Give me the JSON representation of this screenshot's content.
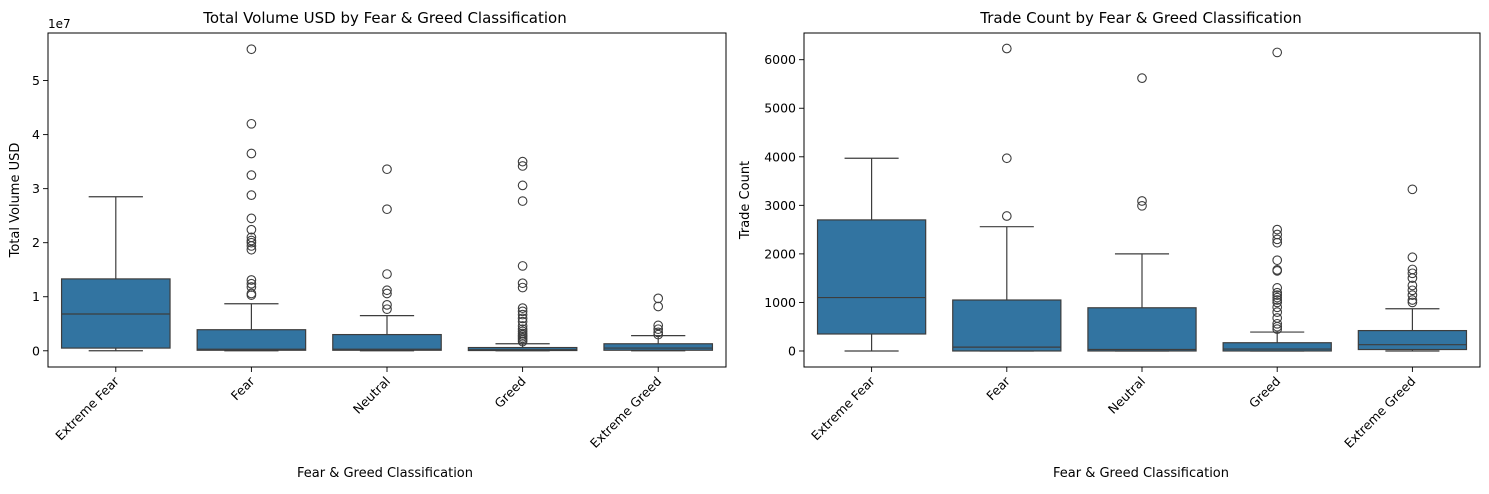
{
  "chart_data": [
    {
      "type": "box",
      "title": "Total Volume USD by Fear & Greed Classification",
      "xlabel": "Fear & Greed Classification",
      "ylabel": "Total Volume USD",
      "offset_label": "1e7",
      "ylim": [
        -3000000,
        58800000
      ],
      "yticks": [
        0,
        10000000,
        20000000,
        30000000,
        40000000,
        50000000
      ],
      "ytick_labels": [
        "0",
        "1",
        "2",
        "3",
        "4",
        "5"
      ],
      "categories": [
        "Extreme Fear",
        "Fear",
        "Neutral",
        "Greed",
        "Extreme Greed"
      ],
      "color": "#3274a1",
      "boxes": [
        {
          "category": "Extreme Fear",
          "whislo": 0,
          "q1": 500000,
          "med": 6800000,
          "q3": 13300000,
          "whishi": 28500000,
          "fliers": []
        },
        {
          "category": "Fear",
          "whislo": 0,
          "q1": 100000,
          "med": 300000,
          "q3": 3900000,
          "whishi": 8700000,
          "fliers": [
            10300000,
            10600000,
            11800000,
            12400000,
            13100000,
            18700000,
            19400000,
            20000000,
            20400000,
            21000000,
            22400000,
            24500000,
            28800000,
            32500000,
            36500000,
            42000000,
            55800000
          ]
        },
        {
          "category": "Neutral",
          "whislo": 0,
          "q1": 100000,
          "med": 300000,
          "q3": 3000000,
          "whishi": 6500000,
          "fliers": [
            7700000,
            8500000,
            10600000,
            11200000,
            14200000,
            26200000,
            33600000
          ]
        },
        {
          "category": "Greed",
          "whislo": 0,
          "q1": 50000,
          "med": 200000,
          "q3": 600000,
          "whishi": 1300000,
          "fliers": [
            1700000,
            2000000,
            2300000,
            2600000,
            2900000,
            3200000,
            3600000,
            4000000,
            4600000,
            5400000,
            6000000,
            6700000,
            7300000,
            7900000,
            11700000,
            12500000,
            15700000,
            27700000,
            30600000,
            34200000,
            35000000
          ]
        },
        {
          "category": "Extreme Greed",
          "whislo": 0,
          "q1": 100000,
          "med": 500000,
          "q3": 1300000,
          "whishi": 2800000,
          "fliers": [
            3000000,
            3400000,
            4000000,
            4700000,
            8200000,
            9700000
          ]
        }
      ]
    },
    {
      "type": "box",
      "title": "Trade Count by Fear & Greed Classification",
      "xlabel": "Fear & Greed Classification",
      "ylabel": "Trade Count",
      "ylim": [
        -330,
        6550
      ],
      "yticks": [
        0,
        1000,
        2000,
        3000,
        4000,
        5000,
        6000
      ],
      "ytick_labels": [
        "0",
        "1000",
        "2000",
        "3000",
        "4000",
        "5000",
        "6000"
      ],
      "categories": [
        "Extreme Fear",
        "Fear",
        "Neutral",
        "Greed",
        "Extreme Greed"
      ],
      "color": "#3274a1",
      "boxes": [
        {
          "category": "Extreme Fear",
          "whislo": 0,
          "q1": 350,
          "med": 1100,
          "q3": 2700,
          "whishi": 3970,
          "fliers": []
        },
        {
          "category": "Fear",
          "whislo": 0,
          "q1": 0,
          "med": 80,
          "q3": 1050,
          "whishi": 2560,
          "fliers": [
            2780,
            3970,
            6230
          ]
        },
        {
          "category": "Neutral",
          "whislo": 0,
          "q1": 0,
          "med": 30,
          "q3": 890,
          "whishi": 2000,
          "fliers": [
            2990,
            3090,
            5620
          ]
        },
        {
          "category": "Greed",
          "whislo": 0,
          "q1": 0,
          "med": 40,
          "q3": 170,
          "whishi": 390,
          "fliers": [
            450,
            500,
            560,
            680,
            800,
            900,
            1000,
            1050,
            1100,
            1150,
            1200,
            1300,
            1650,
            1670,
            1870,
            2230,
            2300,
            2400,
            2500,
            6150
          ]
        },
        {
          "category": "Extreme Greed",
          "whislo": 0,
          "q1": 30,
          "med": 130,
          "q3": 420,
          "whishi": 870,
          "fliers": [
            1000,
            1050,
            1150,
            1250,
            1350,
            1500,
            1600,
            1680,
            1930,
            3330
          ]
        }
      ]
    }
  ]
}
